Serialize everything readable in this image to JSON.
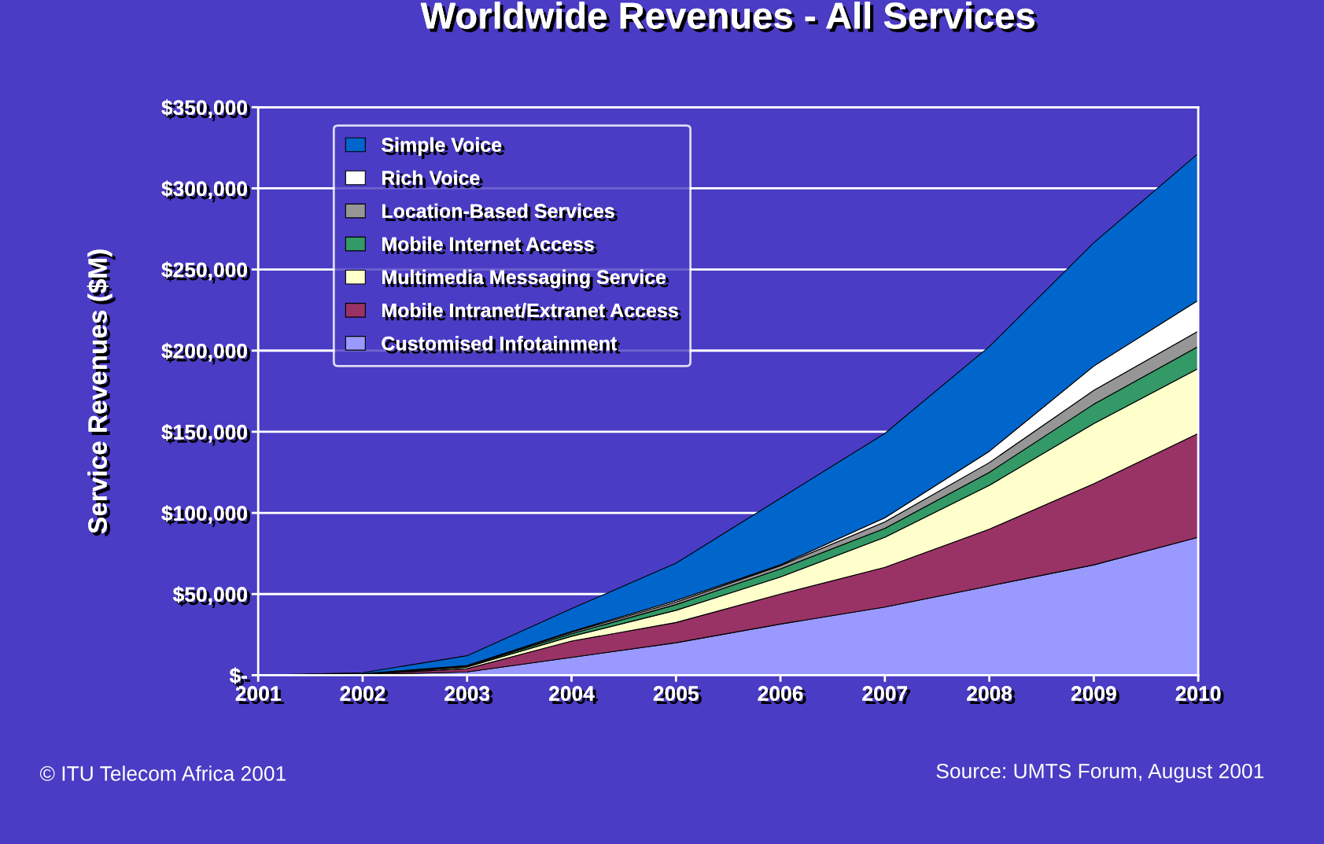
{
  "chart_data": {
    "type": "area",
    "stacked": true,
    "title": "Worldwide Revenues - All Services",
    "ylabel": "Service Revenues ($M)",
    "categories": [
      "2001",
      "2002",
      "2003",
      "2004",
      "2005",
      "2006",
      "2007",
      "2008",
      "2009",
      "2010"
    ],
    "series": [
      {
        "name": "Customised Infotainment",
        "color": "#9999ff",
        "values": [
          0,
          300,
          2000,
          11000,
          20000,
          31500,
          42000,
          55000,
          68000,
          85000
        ]
      },
      {
        "name": "Mobile Intranet/Extranet Access",
        "color": "#993366",
        "values": [
          0,
          300,
          2000,
          10000,
          12500,
          18500,
          24500,
          35000,
          50000,
          64000
        ]
      },
      {
        "name": "Multimedia Messaging Service",
        "color": "#ffffcc",
        "values": [
          0,
          100,
          1000,
          3000,
          7500,
          10500,
          18500,
          27000,
          37000,
          40000
        ]
      },
      {
        "name": "Mobile Internet Access",
        "color": "#339966",
        "values": [
          0,
          100,
          500,
          1500,
          3500,
          5000,
          5500,
          8000,
          12000,
          13500
        ]
      },
      {
        "name": "Location-Based Services",
        "color": "#969696",
        "values": [
          0,
          50,
          300,
          1000,
          1500,
          2000,
          4000,
          6000,
          8500,
          9500
        ]
      },
      {
        "name": "Rich Voice",
        "color": "#ffffff",
        "values": [
          0,
          50,
          200,
          500,
          1000,
          500,
          2500,
          7000,
          15000,
          19000
        ]
      },
      {
        "name": "Simple Voice",
        "color": "#0066cc",
        "values": [
          0,
          600,
          6000,
          14000,
          23000,
          41000,
          52000,
          64500,
          76000,
          90500
        ]
      }
    ],
    "ylim": [
      0,
      350000
    ],
    "yticks": [
      {
        "value": 0,
        "label": "$-"
      },
      {
        "value": 50000,
        "label": "$50,000"
      },
      {
        "value": 100000,
        "label": "$100,000"
      },
      {
        "value": 150000,
        "label": "$150,000"
      },
      {
        "value": 200000,
        "label": "$200,000"
      },
      {
        "value": 250000,
        "label": "$250,000"
      },
      {
        "value": 300000,
        "label": "$300,000"
      },
      {
        "value": 350000,
        "label": "$350,000"
      }
    ],
    "grid": "y",
    "legend": "top left",
    "annotations": [
      "© ITU Telecom Africa 2001",
      "Source: UMTS Forum, August 2001"
    ]
  }
}
